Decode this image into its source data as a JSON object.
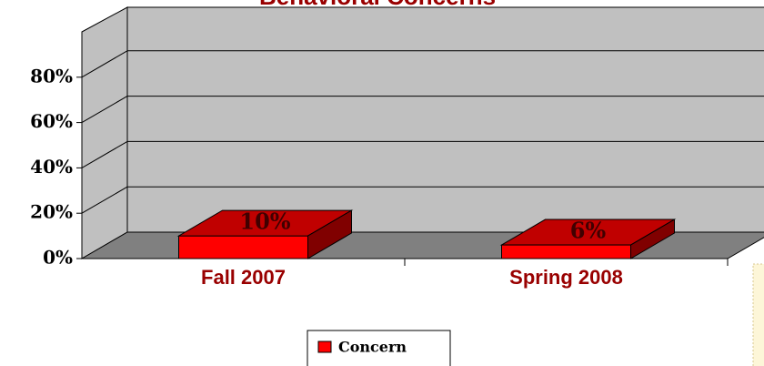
{
  "chart_data": {
    "type": "bar3d",
    "title": "Behavioral Concerns",
    "categories": [
      "Fall 2007",
      "Spring 2008"
    ],
    "series": [
      {
        "name": "Concern",
        "color": "#ff0000",
        "values": [
          10,
          6
        ],
        "value_labels": [
          "10%",
          "6%"
        ]
      }
    ],
    "ylim": [
      0,
      100
    ],
    "yticks": [
      {
        "value": 0,
        "label": "0%"
      },
      {
        "value": 20,
        "label": "20%"
      },
      {
        "value": 40,
        "label": "40%"
      },
      {
        "value": 60,
        "label": "60%"
      },
      {
        "value": 80,
        "label": "80%"
      }
    ],
    "grid": true,
    "legend": "bottom"
  }
}
